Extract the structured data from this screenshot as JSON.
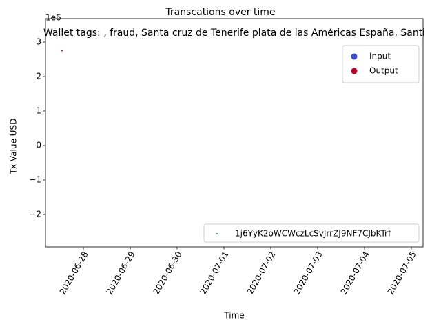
{
  "chart_data": {
    "type": "scatter",
    "suptitle": "Transcations over time",
    "title": "Wallet tags: , fraud, Santa cruz de Tenerife plata de las Américas España, Santi",
    "x_label": "Time",
    "y_label": "Tx Value USD",
    "y_offset_label": "1e6",
    "series": [
      {
        "name": "1j6YyK2oWCWczLcSvJrrZJ9NF7CJbKTrf",
        "color": "#1f77b4",
        "x": [
          "2020-06-27T13:00"
        ],
        "values": [
          2750000
        ],
        "hue": [
          "Output"
        ]
      }
    ],
    "hue_legend": [
      {
        "name": "Input",
        "color": "#3b4cc0"
      },
      {
        "name": "Output",
        "color": "#b40426"
      }
    ],
    "xlim": [
      "2020-06-27T04:35",
      "2020-07-05T06:00"
    ],
    "xticks": [
      "2020-06-28",
      "2020-06-29",
      "2020-06-30",
      "2020-07-01",
      "2020-07-02",
      "2020-07-03",
      "2020-07-04",
      "2020-07-05"
    ],
    "ylim": [
      -2940000,
      3680000
    ],
    "yticks": [
      {
        "value": -2000000,
        "label": "−2"
      },
      {
        "value": -1000000,
        "label": "−1"
      },
      {
        "value": 0,
        "label": "0"
      },
      {
        "value": 1000000,
        "label": "1"
      },
      {
        "value": 2000000,
        "label": "2"
      },
      {
        "value": 3000000,
        "label": "3"
      }
    ],
    "hue_legend_position": "upper right",
    "series_legend_position": "lower right"
  }
}
